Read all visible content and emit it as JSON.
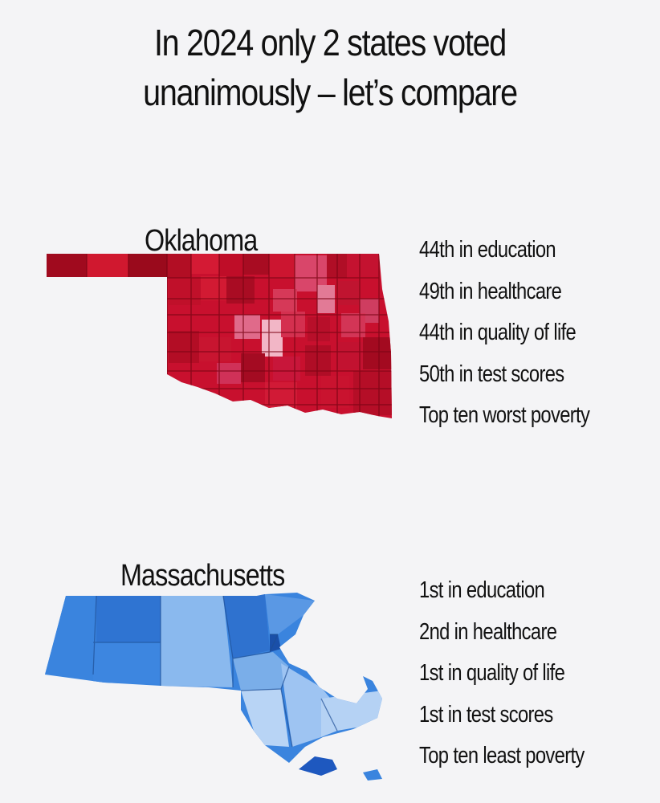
{
  "title": {
    "line1": "In 2024 only 2 states voted",
    "line2": "unanimously – let’s compare"
  },
  "states": [
    {
      "name": "Oklahoma",
      "map_color": "#c8102e",
      "stats": [
        "44th in education",
        "49th in healthcare",
        "44th in quality of life",
        "50th in test scores",
        "Top ten worst poverty"
      ]
    },
    {
      "name": "Massachusetts",
      "map_color": "#3a84de",
      "stats": [
        "1st in education",
        "2nd in healthcare",
        "1st in quality of life",
        "1st in test scores",
        "Top ten least poverty"
      ]
    }
  ]
}
